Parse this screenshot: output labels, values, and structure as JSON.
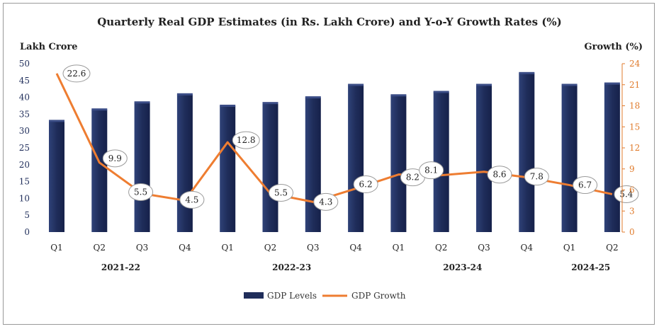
{
  "chart_data": {
    "type": "bar+line",
    "title": "Quarterly Real GDP Estimates (in Rs. Lakh Crore) and Y-o-Y Growth Rates (%)",
    "left_axis_label": "Lakh Crore",
    "right_axis_label": "Growth (%)",
    "categories": [
      "Q1",
      "Q2",
      "Q3",
      "Q4",
      "Q1",
      "Q2",
      "Q3",
      "Q4",
      "Q1",
      "Q2",
      "Q3",
      "Q4",
      "Q1",
      "Q2"
    ],
    "groups": [
      {
        "label": "2021-22",
        "start": 0,
        "end": 3
      },
      {
        "label": "2022-23",
        "start": 4,
        "end": 7
      },
      {
        "label": "2023-24",
        "start": 8,
        "end": 11
      },
      {
        "label": "2024-25",
        "start": 12,
        "end": 13
      }
    ],
    "series": [
      {
        "name": "GDP Levels",
        "type": "bar",
        "axis": "left",
        "color": "#1f2d5a",
        "values": [
          32.9,
          36.3,
          38.4,
          40.8,
          37.4,
          38.2,
          39.9,
          43.6,
          40.5,
          41.5,
          43.6,
          47.1,
          43.6,
          44.0
        ]
      },
      {
        "name": "GDP Growth",
        "type": "line",
        "axis": "right",
        "color": "#ee7d31",
        "values": [
          22.6,
          9.9,
          5.5,
          4.5,
          12.8,
          5.5,
          4.3,
          6.2,
          8.2,
          8.1,
          8.6,
          7.8,
          6.7,
          5.4
        ],
        "labels": [
          "22.6",
          "9.9",
          "5.5",
          "4.5",
          "12.8",
          "5.5",
          "4.3",
          "6.2",
          "8.2",
          "8.1",
          "8.6",
          "7.8",
          "6.7",
          "5.4"
        ]
      }
    ],
    "ylim_left": [
      0,
      50
    ],
    "yticks_left": [
      "0",
      "5",
      "10",
      "15",
      "20",
      "25",
      "30",
      "35",
      "40",
      "45",
      "50"
    ],
    "ylim_right": [
      0,
      24
    ],
    "yticks_right": [
      "0",
      "3",
      "6",
      "9",
      "12",
      "15",
      "18",
      "21",
      "24"
    ],
    "legend": {
      "position": "bottom",
      "bar_label": "GDP Levels",
      "line_label": "GDP Growth"
    }
  }
}
